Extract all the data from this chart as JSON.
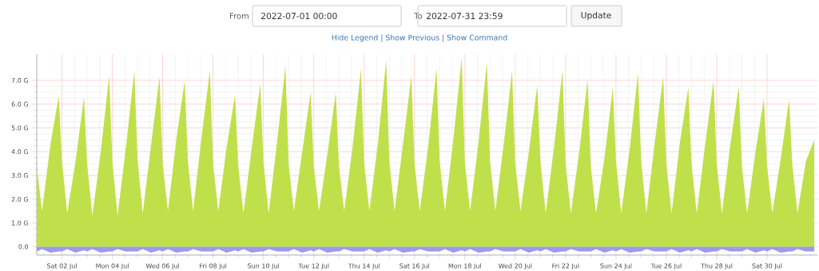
{
  "chart_data": {
    "type": "area",
    "annotations": [
      "From",
      "2022-07-01 00:00",
      "To",
      "2022-07-31 23:59",
      "Update",
      "Hide Legend | Show Previous | Show Command"
    ],
    "x": [
      "2022-07-01T00:00",
      "2022-07-01T05:00",
      "2022-07-01T13:00",
      "2022-07-01T21:00",
      "2022-07-02T00:00",
      "2022-07-02T05:00",
      "2022-07-02T13:00",
      "2022-07-02T21:00",
      "2022-07-03T00:00",
      "2022-07-03T05:00",
      "2022-07-03T13:00",
      "2022-07-03T21:00",
      "2022-07-04T00:00",
      "2022-07-04T05:00",
      "2022-07-04T13:00",
      "2022-07-04T21:00",
      "2022-07-05T00:00",
      "2022-07-05T05:00",
      "2022-07-05T13:00",
      "2022-07-05T21:00",
      "2022-07-06T00:00",
      "2022-07-06T05:00",
      "2022-07-06T13:00",
      "2022-07-06T21:00",
      "2022-07-07T00:00",
      "2022-07-07T05:00",
      "2022-07-07T13:00",
      "2022-07-07T21:00",
      "2022-07-08T00:00",
      "2022-07-08T05:00",
      "2022-07-08T13:00",
      "2022-07-08T21:00",
      "2022-07-09T00:00",
      "2022-07-09T05:00",
      "2022-07-09T13:00",
      "2022-07-09T21:00",
      "2022-07-10T00:00",
      "2022-07-10T05:00",
      "2022-07-10T13:00",
      "2022-07-10T21:00",
      "2022-07-11T00:00",
      "2022-07-11T05:00",
      "2022-07-11T13:00",
      "2022-07-11T21:00",
      "2022-07-12T00:00",
      "2022-07-12T05:00",
      "2022-07-12T13:00",
      "2022-07-12T21:00",
      "2022-07-13T00:00",
      "2022-07-13T05:00",
      "2022-07-13T13:00",
      "2022-07-13T21:00",
      "2022-07-14T00:00",
      "2022-07-14T05:00",
      "2022-07-14T13:00",
      "2022-07-14T21:00",
      "2022-07-15T00:00",
      "2022-07-15T05:00",
      "2022-07-15T13:00",
      "2022-07-15T21:00",
      "2022-07-16T00:00",
      "2022-07-16T05:00",
      "2022-07-16T13:00",
      "2022-07-16T21:00",
      "2022-07-17T00:00",
      "2022-07-17T05:00",
      "2022-07-17T13:00",
      "2022-07-17T21:00",
      "2022-07-18T00:00",
      "2022-07-18T05:00",
      "2022-07-18T13:00",
      "2022-07-18T21:00",
      "2022-07-19T00:00",
      "2022-07-19T05:00",
      "2022-07-19T13:00",
      "2022-07-19T21:00",
      "2022-07-20T00:00",
      "2022-07-20T05:00",
      "2022-07-20T13:00",
      "2022-07-20T21:00",
      "2022-07-21T00:00",
      "2022-07-21T05:00",
      "2022-07-21T13:00",
      "2022-07-21T21:00",
      "2022-07-22T00:00",
      "2022-07-22T05:00",
      "2022-07-22T13:00",
      "2022-07-22T21:00",
      "2022-07-23T00:00",
      "2022-07-23T05:00",
      "2022-07-23T13:00",
      "2022-07-23T21:00",
      "2022-07-24T00:00",
      "2022-07-24T05:00",
      "2022-07-24T13:00",
      "2022-07-24T21:00",
      "2022-07-25T00:00",
      "2022-07-25T05:00",
      "2022-07-25T13:00",
      "2022-07-25T21:00",
      "2022-07-26T00:00",
      "2022-07-26T05:00",
      "2022-07-26T13:00",
      "2022-07-26T21:00",
      "2022-07-27T00:00",
      "2022-07-27T05:00",
      "2022-07-27T13:00",
      "2022-07-27T21:00",
      "2022-07-28T00:00",
      "2022-07-28T05:00",
      "2022-07-28T13:00",
      "2022-07-28T21:00",
      "2022-07-29T00:00",
      "2022-07-29T05:00",
      "2022-07-29T13:00",
      "2022-07-29T21:00",
      "2022-07-30T00:00",
      "2022-07-30T05:00",
      "2022-07-30T13:00",
      "2022-07-30T21:00",
      "2022-07-31T00:00",
      "2022-07-31T05:00",
      "2022-07-31T13:00",
      "2022-07-31T21:00"
    ],
    "series": [
      {
        "color": "#bfe04a",
        "values": [
          3.4,
          1.5,
          4.3,
          6.35,
          3.6,
          1.4,
          3.6,
          6.3,
          3.5,
          1.3,
          4.0,
          7.2,
          3.6,
          1.3,
          4.2,
          7.4,
          3.7,
          1.4,
          4.3,
          7.15,
          3.5,
          1.5,
          4.5,
          7.0,
          3.6,
          1.5,
          4.6,
          7.4,
          3.5,
          1.5,
          4.2,
          6.4,
          3.4,
          1.4,
          4.2,
          6.85,
          3.6,
          1.4,
          4.4,
          7.6,
          3.5,
          1.5,
          4.0,
          6.5,
          3.4,
          1.5,
          3.9,
          6.5,
          3.4,
          1.5,
          4.2,
          7.5,
          3.5,
          1.5,
          4.3,
          7.85,
          3.6,
          1.5,
          4.3,
          7.2,
          3.5,
          1.5,
          4.2,
          7.5,
          3.6,
          1.5,
          4.5,
          7.95,
          3.5,
          1.5,
          4.4,
          7.75,
          3.6,
          1.5,
          4.3,
          7.4,
          3.5,
          1.5,
          4.0,
          6.8,
          3.6,
          1.4,
          4.2,
          7.4,
          3.5,
          1.4,
          4.0,
          7.05,
          3.4,
          1.4,
          3.7,
          6.7,
          3.6,
          1.4,
          4.1,
          7.3,
          3.6,
          1.4,
          4.4,
          7.15,
          3.5,
          1.4,
          4.4,
          6.7,
          3.5,
          1.4,
          4.3,
          7.0,
          3.5,
          1.4,
          4.3,
          6.75,
          3.4,
          1.4,
          4.0,
          6.25,
          3.4,
          1.4,
          3.7,
          6.2,
          3.5,
          1.4,
          3.6,
          4.5
        ]
      },
      {
        "color": "#9a9aee",
        "values": [
          -0.2,
          -0.1,
          -0.25,
          -0.2,
          -0.2,
          -0.1,
          -0.25,
          -0.15,
          -0.2,
          -0.1,
          -0.25,
          -0.2,
          -0.2,
          -0.1,
          -0.2,
          -0.2,
          -0.2,
          -0.1,
          -0.25,
          -0.15,
          -0.2,
          -0.1,
          -0.25,
          -0.2,
          -0.2,
          -0.1,
          -0.2,
          -0.2,
          -0.2,
          -0.1,
          -0.25,
          -0.15,
          -0.2,
          -0.1,
          -0.25,
          -0.2,
          -0.2,
          -0.1,
          -0.2,
          -0.2,
          -0.2,
          -0.1,
          -0.25,
          -0.15,
          -0.2,
          -0.1,
          -0.25,
          -0.2,
          -0.2,
          -0.1,
          -0.2,
          -0.2,
          -0.2,
          -0.1,
          -0.25,
          -0.15,
          -0.2,
          -0.1,
          -0.25,
          -0.2,
          -0.2,
          -0.1,
          -0.2,
          -0.2,
          -0.2,
          -0.1,
          -0.25,
          -0.15,
          -0.2,
          -0.1,
          -0.25,
          -0.2,
          -0.2,
          -0.1,
          -0.2,
          -0.2,
          -0.2,
          -0.1,
          -0.25,
          -0.15,
          -0.2,
          -0.1,
          -0.25,
          -0.2,
          -0.2,
          -0.1,
          -0.2,
          -0.2,
          -0.2,
          -0.1,
          -0.25,
          -0.15,
          -0.2,
          -0.1,
          -0.25,
          -0.2,
          -0.2,
          -0.1,
          -0.2,
          -0.2,
          -0.2,
          -0.1,
          -0.25,
          -0.15,
          -0.2,
          -0.1,
          -0.25,
          -0.2,
          -0.2,
          -0.1,
          -0.2,
          -0.2,
          -0.2,
          -0.1,
          -0.25,
          -0.15,
          -0.2,
          -0.1,
          -0.25,
          -0.2,
          -0.2,
          -0.1,
          -0.2,
          -0.2
        ]
      }
    ],
    "xlim": [
      "2022-07-01T00:00",
      "2022-07-31T23:59"
    ],
    "xticks": [
      {
        "value": "2022-07-02",
        "label": "Sat 02 Jul"
      },
      {
        "value": "2022-07-04",
        "label": "Mon 04 Jul"
      },
      {
        "value": "2022-07-06",
        "label": "Wed 06 Jul"
      },
      {
        "value": "2022-07-08",
        "label": "Fri 08 Jul"
      },
      {
        "value": "2022-07-10",
        "label": "Sun 10 Jul"
      },
      {
        "value": "2022-07-12",
        "label": "Tue 12 Jul"
      },
      {
        "value": "2022-07-14",
        "label": "Thu 14 Jul"
      },
      {
        "value": "2022-07-16",
        "label": "Sat 16 Jul"
      },
      {
        "value": "2022-07-18",
        "label": "Mon 18 Jul"
      },
      {
        "value": "2022-07-20",
        "label": "Wed 20 Jul"
      },
      {
        "value": "2022-07-22",
        "label": "Fri 22 Jul"
      },
      {
        "value": "2022-07-24",
        "label": "Sun 24 Jul"
      },
      {
        "value": "2022-07-26",
        "label": "Tue 26 Jul"
      },
      {
        "value": "2022-07-28",
        "label": "Thu 28 Jul"
      },
      {
        "value": "2022-07-30",
        "label": "Sat 30 Jul"
      }
    ],
    "ylim": [
      -0.35,
      8.1
    ],
    "yticks": [
      {
        "value": 0,
        "label": "0.0"
      },
      {
        "value": 1,
        "label": "1.0 G"
      },
      {
        "value": 2,
        "label": "2.0 G"
      },
      {
        "value": 3,
        "label": "3.0 G"
      },
      {
        "value": 4,
        "label": "4.0 G"
      },
      {
        "value": 5,
        "label": "5.0 G"
      },
      {
        "value": 6,
        "label": "6.0 G"
      },
      {
        "value": 7,
        "label": "7.0 G"
      }
    ],
    "grid": true
  }
}
